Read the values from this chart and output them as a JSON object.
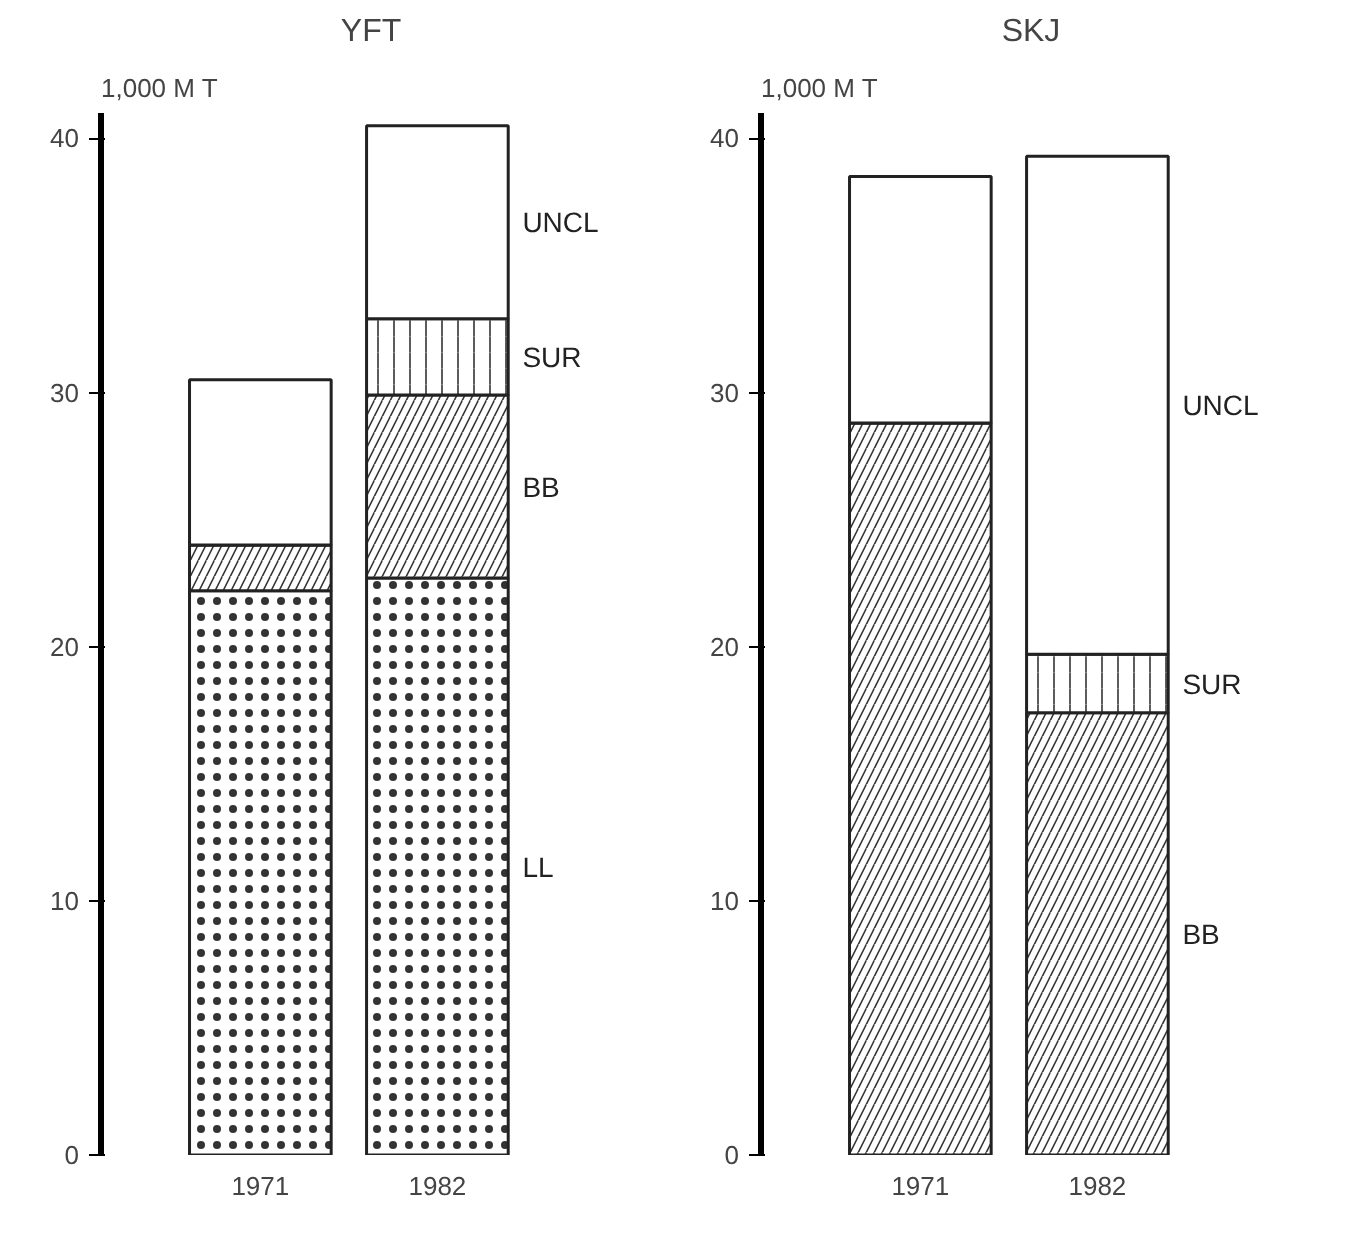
{
  "chart_data": [
    {
      "type": "bar",
      "title": "YFT",
      "ylabel": "1,000 M T",
      "stacked": true,
      "categories": [
        "1971",
        "1982"
      ],
      "ylim": [
        0,
        41
      ],
      "yticks": [
        0,
        10,
        20,
        30,
        40
      ],
      "grid": false,
      "series": [
        {
          "name": "LL",
          "color": "#ffffff",
          "values": [
            22.2,
            22.7
          ]
        },
        {
          "name": "BB",
          "color": "#ffffff",
          "values": [
            1.8,
            7.2
          ]
        },
        {
          "name": "SUR",
          "color": "#ffffff",
          "values": [
            0,
            3.0
          ]
        },
        {
          "name": "UNCL",
          "color": "#ffffff",
          "values": [
            6.5,
            7.6
          ]
        }
      ]
    },
    {
      "type": "bar",
      "title": "SKJ",
      "ylabel": "1,000 M T",
      "stacked": true,
      "categories": [
        "1971",
        "1982"
      ],
      "ylim": [
        0,
        41
      ],
      "yticks": [
        0,
        10,
        20,
        30,
        40
      ],
      "grid": false,
      "series": [
        {
          "name": "BB",
          "color": "#ffffff",
          "values": [
            28.8,
            17.4
          ]
        },
        {
          "name": "SUR",
          "color": "#ffffff",
          "values": [
            0,
            2.3
          ]
        },
        {
          "name": "UNCL",
          "color": "#ffffff",
          "values": [
            9.7,
            19.6
          ]
        }
      ]
    }
  ]
}
